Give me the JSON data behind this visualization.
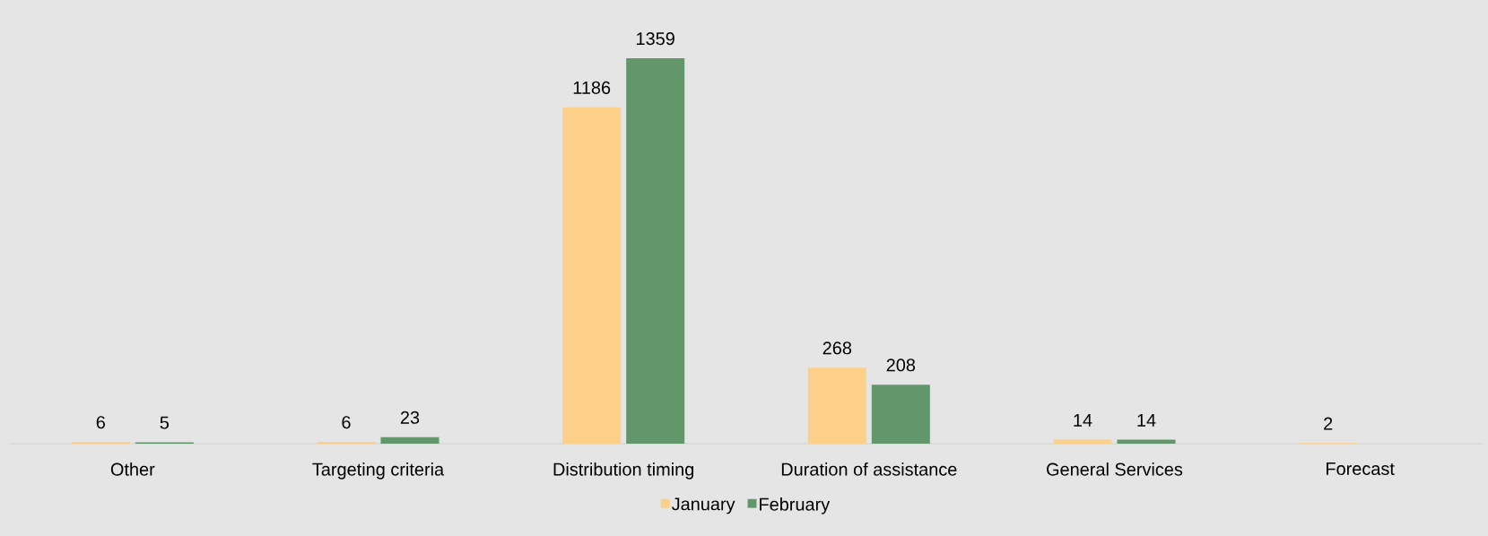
{
  "chart_data": {
    "type": "bar",
    "categories": [
      "Other",
      "Targeting criteria",
      "Distribution timing",
      "Duration of assistance",
      "General Services",
      "Forecast"
    ],
    "series": [
      {
        "name": "January",
        "color": "#fcd088",
        "values": [
          6,
          6,
          1186,
          268,
          14,
          2
        ]
      },
      {
        "name": "February",
        "color": "#62976b",
        "values": [
          5,
          23,
          1359,
          208,
          14,
          null
        ]
      }
    ],
    "data_labels": true,
    "legend": "bottom"
  }
}
